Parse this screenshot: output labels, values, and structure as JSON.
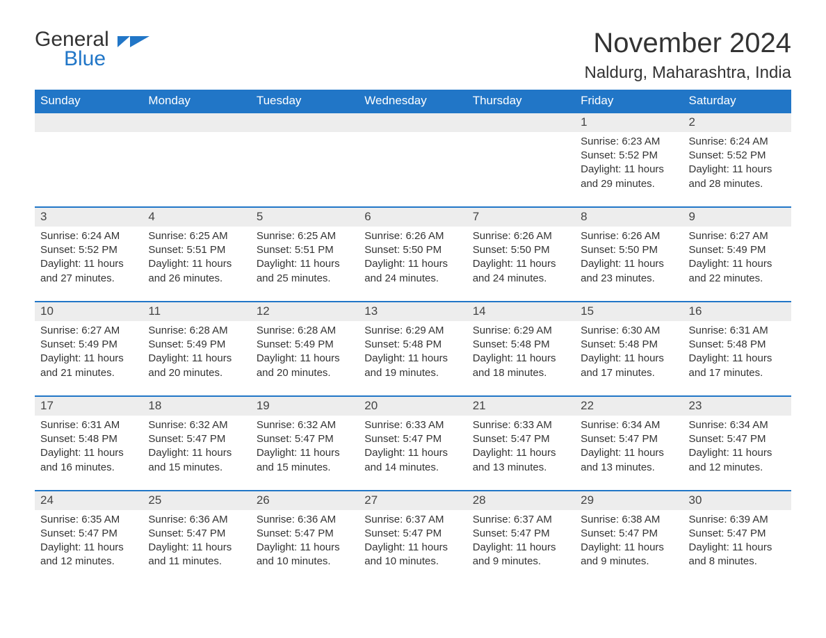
{
  "brand": {
    "general": "General",
    "blue": "Blue"
  },
  "title": "November 2024",
  "location": "Naldurg, Maharashtra, India",
  "colors": {
    "header_bg": "#2176c7",
    "header_text": "#ffffff",
    "daynum_bg": "#ededed",
    "border_top": "#2176c7",
    "body_text": "#333333",
    "page_bg": "#ffffff"
  },
  "typography": {
    "title_fontsize": 40,
    "location_fontsize": 24,
    "header_fontsize": 17,
    "cell_fontsize": 15
  },
  "layout": {
    "columns": 7,
    "first_weekday": "Sunday"
  },
  "weekdays": [
    "Sunday",
    "Monday",
    "Tuesday",
    "Wednesday",
    "Thursday",
    "Friday",
    "Saturday"
  ],
  "weeks": [
    [
      null,
      null,
      null,
      null,
      null,
      {
        "day": 1,
        "sunrise": "6:23 AM",
        "sunset": "5:52 PM",
        "daylight": "11 hours and 29 minutes."
      },
      {
        "day": 2,
        "sunrise": "6:24 AM",
        "sunset": "5:52 PM",
        "daylight": "11 hours and 28 minutes."
      }
    ],
    [
      {
        "day": 3,
        "sunrise": "6:24 AM",
        "sunset": "5:52 PM",
        "daylight": "11 hours and 27 minutes."
      },
      {
        "day": 4,
        "sunrise": "6:25 AM",
        "sunset": "5:51 PM",
        "daylight": "11 hours and 26 minutes."
      },
      {
        "day": 5,
        "sunrise": "6:25 AM",
        "sunset": "5:51 PM",
        "daylight": "11 hours and 25 minutes."
      },
      {
        "day": 6,
        "sunrise": "6:26 AM",
        "sunset": "5:50 PM",
        "daylight": "11 hours and 24 minutes."
      },
      {
        "day": 7,
        "sunrise": "6:26 AM",
        "sunset": "5:50 PM",
        "daylight": "11 hours and 24 minutes."
      },
      {
        "day": 8,
        "sunrise": "6:26 AM",
        "sunset": "5:50 PM",
        "daylight": "11 hours and 23 minutes."
      },
      {
        "day": 9,
        "sunrise": "6:27 AM",
        "sunset": "5:49 PM",
        "daylight": "11 hours and 22 minutes."
      }
    ],
    [
      {
        "day": 10,
        "sunrise": "6:27 AM",
        "sunset": "5:49 PM",
        "daylight": "11 hours and 21 minutes."
      },
      {
        "day": 11,
        "sunrise": "6:28 AM",
        "sunset": "5:49 PM",
        "daylight": "11 hours and 20 minutes."
      },
      {
        "day": 12,
        "sunrise": "6:28 AM",
        "sunset": "5:49 PM",
        "daylight": "11 hours and 20 minutes."
      },
      {
        "day": 13,
        "sunrise": "6:29 AM",
        "sunset": "5:48 PM",
        "daylight": "11 hours and 19 minutes."
      },
      {
        "day": 14,
        "sunrise": "6:29 AM",
        "sunset": "5:48 PM",
        "daylight": "11 hours and 18 minutes."
      },
      {
        "day": 15,
        "sunrise": "6:30 AM",
        "sunset": "5:48 PM",
        "daylight": "11 hours and 17 minutes."
      },
      {
        "day": 16,
        "sunrise": "6:31 AM",
        "sunset": "5:48 PM",
        "daylight": "11 hours and 17 minutes."
      }
    ],
    [
      {
        "day": 17,
        "sunrise": "6:31 AM",
        "sunset": "5:48 PM",
        "daylight": "11 hours and 16 minutes."
      },
      {
        "day": 18,
        "sunrise": "6:32 AM",
        "sunset": "5:47 PM",
        "daylight": "11 hours and 15 minutes."
      },
      {
        "day": 19,
        "sunrise": "6:32 AM",
        "sunset": "5:47 PM",
        "daylight": "11 hours and 15 minutes."
      },
      {
        "day": 20,
        "sunrise": "6:33 AM",
        "sunset": "5:47 PM",
        "daylight": "11 hours and 14 minutes."
      },
      {
        "day": 21,
        "sunrise": "6:33 AM",
        "sunset": "5:47 PM",
        "daylight": "11 hours and 13 minutes."
      },
      {
        "day": 22,
        "sunrise": "6:34 AM",
        "sunset": "5:47 PM",
        "daylight": "11 hours and 13 minutes."
      },
      {
        "day": 23,
        "sunrise": "6:34 AM",
        "sunset": "5:47 PM",
        "daylight": "11 hours and 12 minutes."
      }
    ],
    [
      {
        "day": 24,
        "sunrise": "6:35 AM",
        "sunset": "5:47 PM",
        "daylight": "11 hours and 12 minutes."
      },
      {
        "day": 25,
        "sunrise": "6:36 AM",
        "sunset": "5:47 PM",
        "daylight": "11 hours and 11 minutes."
      },
      {
        "day": 26,
        "sunrise": "6:36 AM",
        "sunset": "5:47 PM",
        "daylight": "11 hours and 10 minutes."
      },
      {
        "day": 27,
        "sunrise": "6:37 AM",
        "sunset": "5:47 PM",
        "daylight": "11 hours and 10 minutes."
      },
      {
        "day": 28,
        "sunrise": "6:37 AM",
        "sunset": "5:47 PM",
        "daylight": "11 hours and 9 minutes."
      },
      {
        "day": 29,
        "sunrise": "6:38 AM",
        "sunset": "5:47 PM",
        "daylight": "11 hours and 9 minutes."
      },
      {
        "day": 30,
        "sunrise": "6:39 AM",
        "sunset": "5:47 PM",
        "daylight": "11 hours and 8 minutes."
      }
    ]
  ],
  "labels": {
    "sunrise": "Sunrise: ",
    "sunset": "Sunset: ",
    "daylight": "Daylight: "
  }
}
